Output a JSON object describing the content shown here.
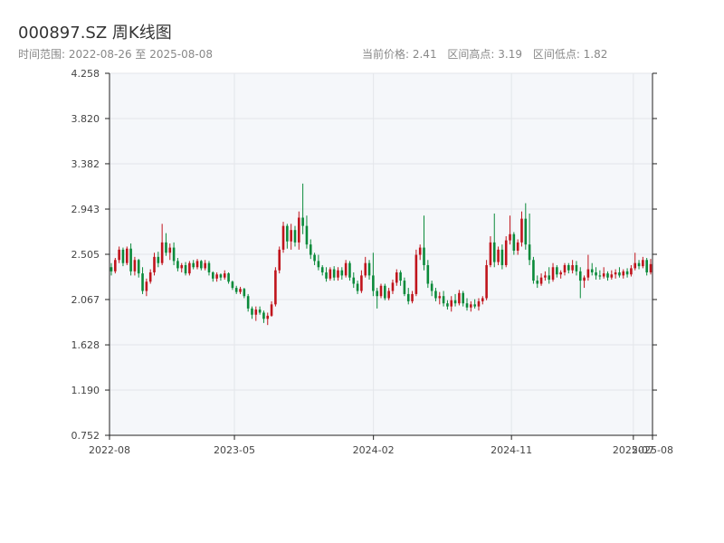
{
  "header": {
    "title": "000897.SZ 周K线图",
    "subtitle": "时间范围: 2022-08-26 至 2025-08-08",
    "stats": [
      "当前价格: 2.41",
      "区间高点: 3.19",
      "区间低点: 1.82"
    ]
  },
  "colors": {
    "up": "#c0141c",
    "down": "#0a8a3a",
    "plot_bg": "#f5f7fa",
    "grid": "#e3e6ea"
  },
  "chart_data": {
    "type": "candlestick",
    "title": "000897.SZ 周K线图",
    "ylim": [
      0.752,
      4.258
    ],
    "yticks": [
      "0.752",
      "1.190",
      "1.628",
      "2.067",
      "2.505",
      "2.943",
      "3.382",
      "3.820",
      "4.258"
    ],
    "xlim": [
      "2022-08-26",
      "2025-08-08"
    ],
    "xticks": [
      {
        "label": "2022-08",
        "date": "2022-08-26"
      },
      {
        "label": "2023-05",
        "date": "2023-05-01"
      },
      {
        "label": "2024-02",
        "date": "2024-02-01"
      },
      {
        "label": "2024-11",
        "date": "2024-11-01"
      },
      {
        "label": "2025-07",
        "date": "2025-07-01"
      },
      {
        "label": "2025-08",
        "date": "2025-08-08"
      }
    ],
    "ohlc": [
      [
        2.38,
        2.42,
        2.3,
        2.34
      ],
      [
        2.34,
        2.47,
        2.32,
        2.45
      ],
      [
        2.45,
        2.58,
        2.42,
        2.55
      ],
      [
        2.55,
        2.57,
        2.39,
        2.42
      ],
      [
        2.42,
        2.58,
        2.4,
        2.56
      ],
      [
        2.56,
        2.61,
        2.3,
        2.34
      ],
      [
        2.34,
        2.48,
        2.3,
        2.45
      ],
      [
        2.45,
        2.46,
        2.28,
        2.32
      ],
      [
        2.32,
        2.38,
        2.12,
        2.15
      ],
      [
        2.15,
        2.27,
        2.1,
        2.24
      ],
      [
        2.24,
        2.36,
        2.22,
        2.33
      ],
      [
        2.33,
        2.52,
        2.3,
        2.48
      ],
      [
        2.48,
        2.53,
        2.38,
        2.42
      ],
      [
        2.42,
        2.8,
        2.4,
        2.62
      ],
      [
        2.62,
        2.71,
        2.49,
        2.52
      ],
      [
        2.52,
        2.61,
        2.45,
        2.57
      ],
      [
        2.57,
        2.62,
        2.4,
        2.44
      ],
      [
        2.44,
        2.47,
        2.34,
        2.37
      ],
      [
        2.37,
        2.42,
        2.33,
        2.4
      ],
      [
        2.4,
        2.43,
        2.3,
        2.32
      ],
      [
        2.32,
        2.44,
        2.3,
        2.42
      ],
      [
        2.42,
        2.45,
        2.36,
        2.38
      ],
      [
        2.38,
        2.46,
        2.36,
        2.44
      ],
      [
        2.44,
        2.45,
        2.35,
        2.37
      ],
      [
        2.37,
        2.45,
        2.35,
        2.42
      ],
      [
        2.42,
        2.44,
        2.3,
        2.33
      ],
      [
        2.33,
        2.34,
        2.24,
        2.27
      ],
      [
        2.27,
        2.33,
        2.24,
        2.31
      ],
      [
        2.31,
        2.32,
        2.25,
        2.28
      ],
      [
        2.28,
        2.35,
        2.26,
        2.32
      ],
      [
        2.32,
        2.33,
        2.22,
        2.24
      ],
      [
        2.24,
        2.25,
        2.16,
        2.18
      ],
      [
        2.18,
        2.2,
        2.12,
        2.14
      ],
      [
        2.14,
        2.19,
        2.12,
        2.17
      ],
      [
        2.17,
        2.18,
        2.08,
        2.1
      ],
      [
        2.1,
        2.12,
        1.95,
        1.98
      ],
      [
        1.98,
        2.0,
        1.88,
        1.92
      ],
      [
        1.92,
        2.0,
        1.86,
        1.97
      ],
      [
        1.97,
        2.0,
        1.92,
        1.94
      ],
      [
        1.94,
        1.96,
        1.84,
        1.88
      ],
      [
        1.88,
        1.94,
        1.82,
        1.91
      ],
      [
        1.91,
        2.05,
        1.9,
        2.02
      ],
      [
        2.02,
        2.38,
        2.0,
        2.35
      ],
      [
        2.35,
        2.58,
        2.32,
        2.55
      ],
      [
        2.55,
        2.82,
        2.52,
        2.78
      ],
      [
        2.78,
        2.8,
        2.56,
        2.63
      ],
      [
        2.63,
        2.8,
        2.55,
        2.74
      ],
      [
        2.74,
        2.78,
        2.58,
        2.62
      ],
      [
        2.62,
        2.92,
        2.55,
        2.86
      ],
      [
        2.86,
        3.19,
        2.7,
        2.78
      ],
      [
        2.78,
        2.88,
        2.56,
        2.6
      ],
      [
        2.6,
        2.65,
        2.46,
        2.5
      ],
      [
        2.5,
        2.52,
        2.4,
        2.44
      ],
      [
        2.44,
        2.5,
        2.35,
        2.38
      ],
      [
        2.38,
        2.4,
        2.3,
        2.33
      ],
      [
        2.33,
        2.38,
        2.24,
        2.27
      ],
      [
        2.27,
        2.38,
        2.25,
        2.36
      ],
      [
        2.36,
        2.39,
        2.25,
        2.28
      ],
      [
        2.28,
        2.38,
        2.25,
        2.35
      ],
      [
        2.35,
        2.38,
        2.26,
        2.3
      ],
      [
        2.3,
        2.45,
        2.28,
        2.42
      ],
      [
        2.42,
        2.44,
        2.25,
        2.28
      ],
      [
        2.28,
        2.33,
        2.18,
        2.22
      ],
      [
        2.22,
        2.25,
        2.12,
        2.15
      ],
      [
        2.15,
        2.35,
        2.13,
        2.3
      ],
      [
        2.3,
        2.48,
        2.28,
        2.42
      ],
      [
        2.42,
        2.45,
        2.26,
        2.3
      ],
      [
        2.3,
        2.52,
        2.1,
        2.15
      ],
      [
        2.15,
        2.18,
        1.98,
        2.1
      ],
      [
        2.1,
        2.22,
        2.08,
        2.2
      ],
      [
        2.2,
        2.22,
        2.06,
        2.08
      ],
      [
        2.08,
        2.18,
        2.06,
        2.15
      ],
      [
        2.15,
        2.26,
        2.12,
        2.23
      ],
      [
        2.23,
        2.36,
        2.2,
        2.33
      ],
      [
        2.33,
        2.35,
        2.2,
        2.25
      ],
      [
        2.25,
        2.28,
        2.1,
        2.12
      ],
      [
        2.12,
        2.18,
        2.02,
        2.05
      ],
      [
        2.05,
        2.15,
        2.03,
        2.12
      ],
      [
        2.12,
        2.55,
        2.1,
        2.5
      ],
      [
        2.5,
        2.6,
        2.45,
        2.57
      ],
      [
        2.57,
        2.88,
        2.35,
        2.4
      ],
      [
        2.4,
        2.45,
        2.18,
        2.22
      ],
      [
        2.22,
        2.25,
        2.1,
        2.15
      ],
      [
        2.15,
        2.18,
        2.05,
        2.08
      ],
      [
        2.08,
        2.14,
        2.02,
        2.1
      ],
      [
        2.1,
        2.15,
        2.0,
        2.03
      ],
      [
        2.03,
        2.06,
        1.97,
        2.0
      ],
      [
        2.0,
        2.1,
        1.95,
        2.06
      ],
      [
        2.06,
        2.12,
        2.0,
        2.03
      ],
      [
        2.03,
        2.16,
        2.01,
        2.13
      ],
      [
        2.13,
        2.15,
        2.0,
        2.03
      ],
      [
        2.03,
        2.08,
        1.96,
        1.99
      ],
      [
        1.99,
        2.05,
        1.95,
        2.02
      ],
      [
        2.02,
        2.07,
        1.98,
        2.0
      ],
      [
        2.0,
        2.08,
        1.96,
        2.05
      ],
      [
        2.05,
        2.1,
        2.02,
        2.08
      ],
      [
        2.08,
        2.45,
        2.06,
        2.4
      ],
      [
        2.4,
        2.68,
        2.38,
        2.62
      ],
      [
        2.62,
        2.9,
        2.38,
        2.43
      ],
      [
        2.43,
        2.58,
        2.4,
        2.55
      ],
      [
        2.55,
        2.6,
        2.36,
        2.4
      ],
      [
        2.4,
        2.68,
        2.38,
        2.64
      ],
      [
        2.64,
        2.88,
        2.6,
        2.7
      ],
      [
        2.7,
        2.72,
        2.5,
        2.54
      ],
      [
        2.54,
        2.65,
        2.5,
        2.62
      ],
      [
        2.62,
        2.92,
        2.58,
        2.85
      ],
      [
        2.85,
        3.0,
        2.55,
        2.6
      ],
      [
        2.6,
        2.9,
        2.4,
        2.45
      ],
      [
        2.45,
        2.48,
        2.22,
        2.25
      ],
      [
        2.25,
        2.3,
        2.18,
        2.22
      ],
      [
        2.22,
        2.32,
        2.2,
        2.28
      ],
      [
        2.28,
        2.34,
        2.25,
        2.3
      ],
      [
        2.3,
        2.38,
        2.22,
        2.26
      ],
      [
        2.26,
        2.42,
        2.24,
        2.38
      ],
      [
        2.38,
        2.4,
        2.28,
        2.31
      ],
      [
        2.31,
        2.35,
        2.27,
        2.33
      ],
      [
        2.33,
        2.42,
        2.3,
        2.4
      ],
      [
        2.4,
        2.42,
        2.32,
        2.35
      ],
      [
        2.35,
        2.45,
        2.32,
        2.4
      ],
      [
        2.4,
        2.44,
        2.3,
        2.34
      ],
      [
        2.34,
        2.38,
        2.08,
        2.25
      ],
      [
        2.25,
        2.3,
        2.18,
        2.28
      ],
      [
        2.28,
        2.5,
        2.25,
        2.36
      ],
      [
        2.36,
        2.42,
        2.3,
        2.33
      ],
      [
        2.33,
        2.38,
        2.26,
        2.3
      ],
      [
        2.3,
        2.35,
        2.26,
        2.29
      ],
      [
        2.29,
        2.38,
        2.27,
        2.32
      ],
      [
        2.32,
        2.34,
        2.25,
        2.28
      ],
      [
        2.28,
        2.35,
        2.26,
        2.31
      ],
      [
        2.31,
        2.36,
        2.27,
        2.33
      ],
      [
        2.33,
        2.38,
        2.28,
        2.3
      ],
      [
        2.3,
        2.36,
        2.27,
        2.34
      ],
      [
        2.34,
        2.37,
        2.28,
        2.31
      ],
      [
        2.31,
        2.4,
        2.29,
        2.37
      ],
      [
        2.37,
        2.52,
        2.35,
        2.42
      ],
      [
        2.42,
        2.45,
        2.36,
        2.39
      ],
      [
        2.39,
        2.48,
        2.37,
        2.45
      ],
      [
        2.45,
        2.47,
        2.3,
        2.33
      ],
      [
        2.33,
        2.46,
        2.31,
        2.41
      ]
    ]
  }
}
